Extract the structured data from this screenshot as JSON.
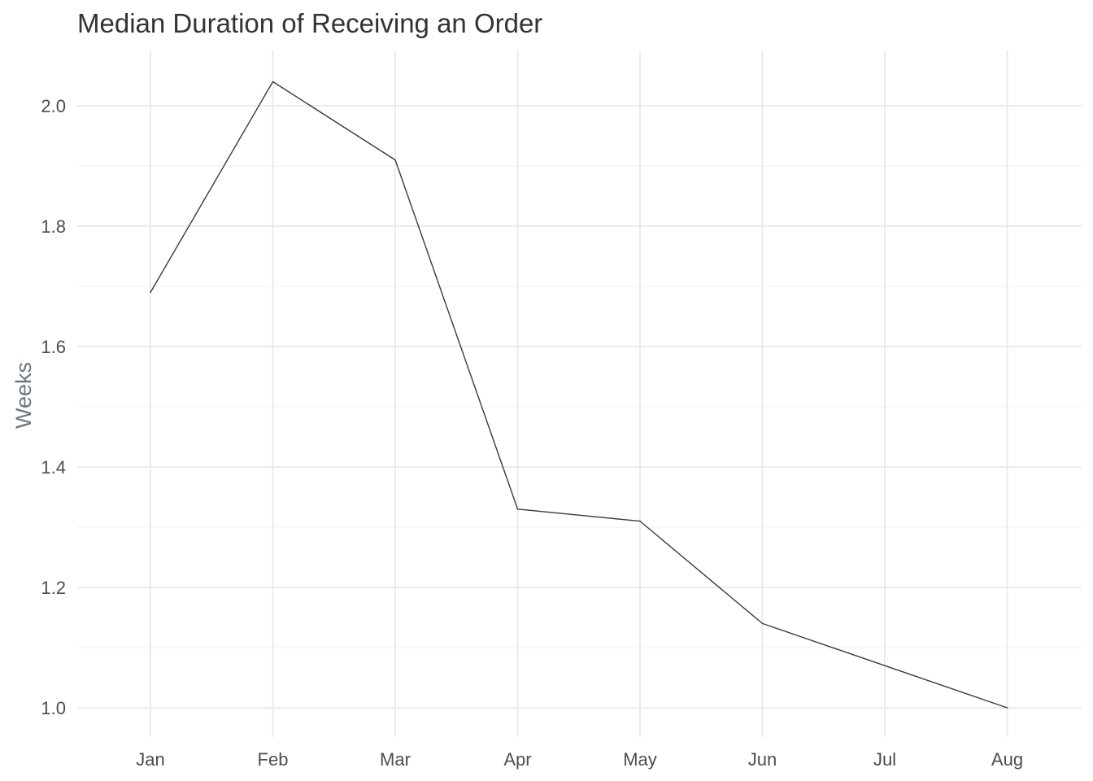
{
  "chart_data": {
    "type": "line",
    "title": "Median Duration of Receiving an Order",
    "xlabel": "",
    "ylabel": "Weeks",
    "categories": [
      "Jan",
      "Feb",
      "Mar",
      "Apr",
      "May",
      "Jun",
      "Jul",
      "Aug"
    ],
    "series": [
      {
        "values": [
          1.69,
          2.04,
          1.91,
          1.33,
          1.31,
          1.14,
          1.07,
          1.0
        ]
      }
    ],
    "ylim": [
      0.954,
      2.093
    ],
    "yticks": [
      1.0,
      1.2,
      1.4,
      1.6,
      1.8,
      2.0
    ],
    "ytick_labels": [
      "1.0",
      "1.2",
      "1.4",
      "1.6",
      "1.8",
      "2.0"
    ],
    "grid": true,
    "legend": "none",
    "colors": {
      "line": "#3a3a3a",
      "grid_major": "#ebebeb",
      "grid_minor": "#f3f3f3"
    }
  }
}
